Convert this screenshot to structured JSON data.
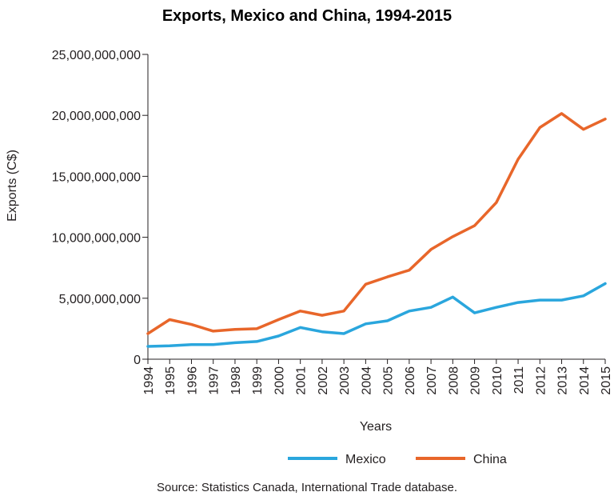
{
  "chart_data": {
    "type": "line",
    "title": "Exports, Mexico and China, 1994-2015",
    "xlabel": "Years",
    "ylabel": "Exports (C$)",
    "x": [
      "1994",
      "1995",
      "1996",
      "1997",
      "1998",
      "1999",
      "2000",
      "2001",
      "2002",
      "2003",
      "2004",
      "2005",
      "2006",
      "2007",
      "2008",
      "2009",
      "2010",
      "2011",
      "2012",
      "2013",
      "2014",
      "2015"
    ],
    "ylim": [
      0,
      25000000000
    ],
    "yticks": [
      0,
      5000000000,
      10000000000,
      15000000000,
      20000000000,
      25000000000
    ],
    "ytick_labels": [
      "0",
      "5,000,000,000",
      "10,000,000,000",
      "15,000,000,000",
      "20,000,000,000",
      "25,000,000,000"
    ],
    "series": [
      {
        "name": "Mexico",
        "color": "#2aa6dd",
        "values": [
          1050000000,
          1100000000,
          1200000000,
          1200000000,
          1350000000,
          1450000000,
          1900000000,
          2600000000,
          2250000000,
          2100000000,
          2900000000,
          3150000000,
          3950000000,
          4250000000,
          5100000000,
          3800000000,
          4250000000,
          4650000000,
          4850000000,
          4850000000,
          5200000000,
          6200000000
        ]
      },
      {
        "name": "China",
        "color": "#e8662a",
        "values": [
          2100000000,
          3250000000,
          2850000000,
          2300000000,
          2450000000,
          2500000000,
          3250000000,
          3950000000,
          3600000000,
          3950000000,
          6150000000,
          6750000000,
          7300000000,
          9000000000,
          10050000000,
          10950000000,
          12850000000,
          16400000000,
          19000000000,
          20150000000,
          18850000000,
          19700000000
        ]
      }
    ],
    "grid": false,
    "legend": "bottom-center",
    "source": "Source: Statistics Canada, International Trade database."
  }
}
